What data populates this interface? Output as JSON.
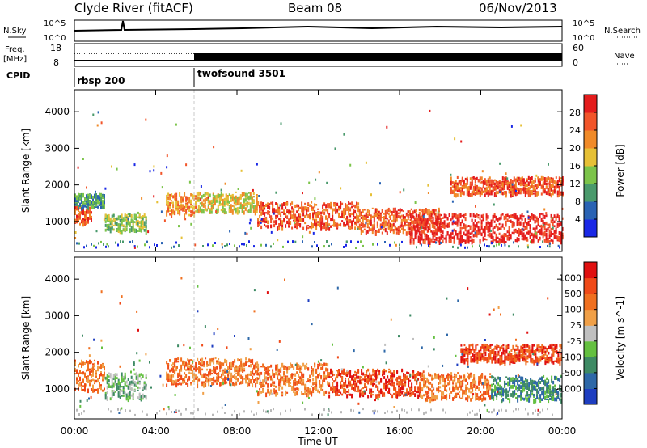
{
  "header": {
    "station": "Clyde River (fitACF)",
    "beam": "Beam 08",
    "date": "06/Nov/2013"
  },
  "top_panels": {
    "nsky_label": "N.Sky",
    "nsky_ticks": [
      "10^5",
      "10^0"
    ],
    "nsearch_label": "N.Search",
    "nsearch_ticks": [
      "10^5",
      "10^0"
    ],
    "freq_label_1": "Freq.",
    "freq_label_2": "[MHz]",
    "freq_ticks": [
      "18",
      "8"
    ],
    "nave_label": "Nave",
    "nave_ticks": [
      "60",
      "0"
    ],
    "cpid_label": "CPID",
    "cpid_segments": [
      {
        "name": "rbsp 200",
        "start_hour": 0,
        "end_hour": 6
      },
      {
        "name": "twofsound 3501",
        "start_hour": 6,
        "end_hour": 24
      }
    ]
  },
  "chart_data": [
    {
      "type": "heatmap",
      "ylabel": "Slant Range [km]",
      "ylim": [
        180,
        4600
      ],
      "yticks": [
        "1000",
        "2000",
        "3000",
        "4000"
      ],
      "xlim_hours": [
        0,
        24
      ],
      "colorbar": {
        "label": "Power [dB]",
        "ticks": [
          "4",
          "8",
          "12",
          "16",
          "20",
          "24",
          "28"
        ],
        "colors": [
          "#1a28e6",
          "#2a63b4",
          "#4a9a6c",
          "#7cc44a",
          "#e6c036",
          "#f08a28",
          "#f2552a",
          "#e41c1c"
        ]
      },
      "scatter_bands": [
        {
          "start_hour": 0.0,
          "end_hour": 0.8,
          "center_km": 1200,
          "thickness_km": 400,
          "level": 6
        },
        {
          "start_hour": 0.0,
          "end_hour": 1.5,
          "center_km": 1600,
          "thickness_km": 300,
          "level": 2
        },
        {
          "start_hour": 1.5,
          "end_hour": 3.5,
          "center_km": 1000,
          "thickness_km": 400,
          "level": 3
        },
        {
          "start_hour": 4.5,
          "end_hour": 6.0,
          "center_km": 1500,
          "thickness_km": 500,
          "level": 5
        },
        {
          "start_hour": 6.0,
          "end_hour": 9.0,
          "center_km": 1550,
          "thickness_km": 450,
          "level": 4
        },
        {
          "start_hour": 9.0,
          "end_hour": 14.0,
          "center_km": 1200,
          "thickness_km": 600,
          "level": 6
        },
        {
          "start_hour": 14.0,
          "end_hour": 18.0,
          "center_km": 1050,
          "thickness_km": 550,
          "level": 6
        },
        {
          "start_hour": 16.5,
          "end_hour": 24.0,
          "center_km": 850,
          "thickness_km": 650,
          "level": 7
        },
        {
          "start_hour": 18.5,
          "end_hour": 24.0,
          "center_km": 2000,
          "thickness_km": 400,
          "level": 6
        }
      ]
    },
    {
      "type": "heatmap",
      "ylabel": "Slant Range [km]",
      "ylim": [
        180,
        4600
      ],
      "yticks": [
        "1000",
        "2000",
        "3000",
        "4000"
      ],
      "xlim_hours": [
        0,
        24
      ],
      "xlabel": "Time UT",
      "xticks": [
        "00:00",
        "04:00",
        "08:00",
        "12:00",
        "16:00",
        "20:00",
        "00:00"
      ],
      "colorbar": {
        "label": "Velocity [m s^-1]",
        "ticks": [
          "1000",
          "500",
          "100",
          "25",
          "-25",
          "-100",
          "-500",
          "-1000"
        ],
        "colors": [
          "#1e3ec0",
          "#2e68a8",
          "#3e8a64",
          "#64c040",
          "#c0c0c0",
          "#f0a048",
          "#f07020",
          "#f04a18",
          "#e01010"
        ]
      },
      "scatter_bands": [
        {
          "start_hour": 0.0,
          "end_hour": 1.5,
          "center_km": 1400,
          "thickness_km": 700,
          "level": 6
        },
        {
          "start_hour": 1.5,
          "end_hour": 3.5,
          "center_km": 1100,
          "thickness_km": 600,
          "level": 3
        },
        {
          "start_hour": 4.5,
          "end_hour": 9.0,
          "center_km": 1500,
          "thickness_km": 600,
          "level": 6
        },
        {
          "start_hour": 9.0,
          "end_hour": 12.5,
          "center_km": 1300,
          "thickness_km": 700,
          "level": 6
        },
        {
          "start_hour": 12.5,
          "end_hour": 17.0,
          "center_km": 1200,
          "thickness_km": 600,
          "level": 7
        },
        {
          "start_hour": 17.0,
          "end_hour": 20.5,
          "center_km": 1100,
          "thickness_km": 600,
          "level": 6
        },
        {
          "start_hour": 20.5,
          "end_hour": 24.0,
          "center_km": 1050,
          "thickness_km": 550,
          "level": 2
        },
        {
          "start_hour": 19.0,
          "end_hour": 24.0,
          "center_km": 2000,
          "thickness_km": 400,
          "level": 7
        }
      ]
    }
  ]
}
